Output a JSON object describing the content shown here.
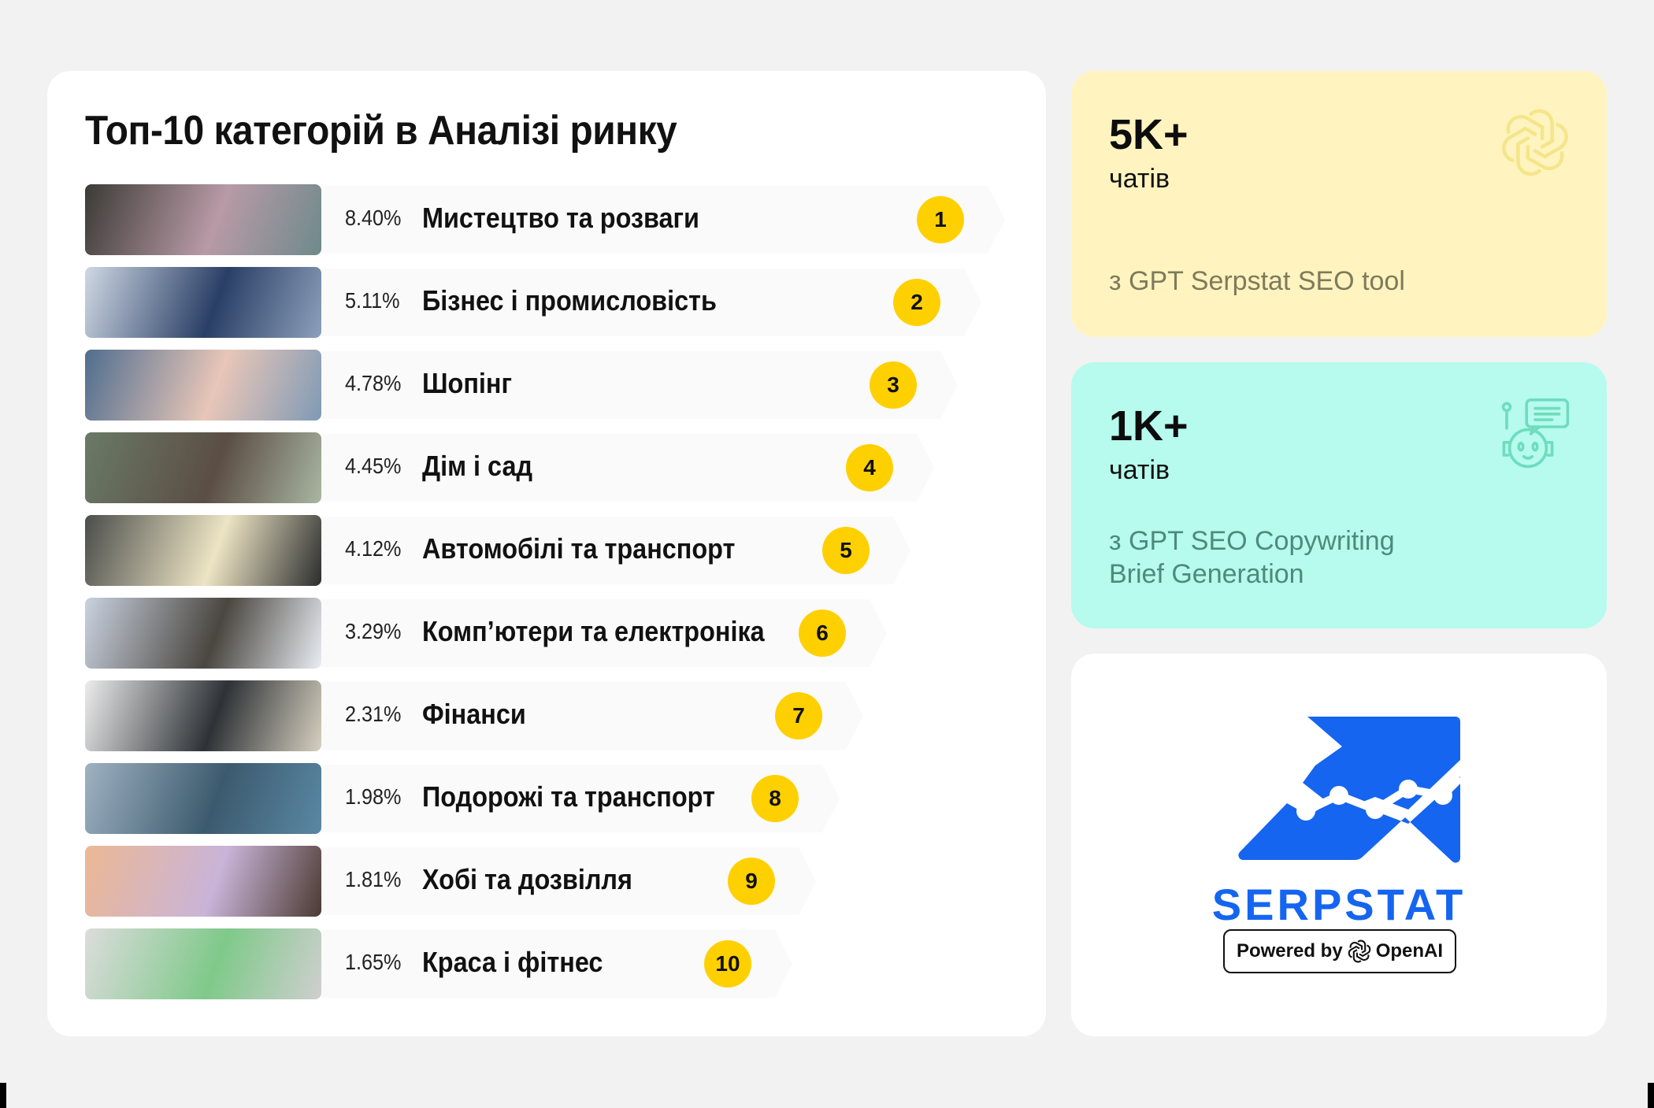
{
  "left_panel": {
    "title": "Топ-10 категорій в Аналізі ринку",
    "categories": [
      {
        "rank": "1",
        "percent": "8.40%",
        "label": "Мистецтво та розваги",
        "image": "artist-painting-photo",
        "thumb_colors": [
          "#3b3a36",
          "#b89aa6",
          "#6e8a8c"
        ]
      },
      {
        "rank": "2",
        "percent": "5.11%",
        "label": "Бізнес і промисловість",
        "image": "business-documents-photo",
        "thumb_colors": [
          "#cfd8e4",
          "#2a3f66",
          "#8da0bb"
        ]
      },
      {
        "rank": "3",
        "percent": "4.78%",
        "label": "Шопінг",
        "image": "shopping-bags-photo",
        "thumb_colors": [
          "#4f6d8e",
          "#e8c6b8",
          "#7f9ab5"
        ]
      },
      {
        "rank": "4",
        "percent": "4.45%",
        "label": "Дім і сад",
        "image": "garden-plants-photo",
        "thumb_colors": [
          "#6a7a66",
          "#5b4e44",
          "#a9b6a2"
        ]
      },
      {
        "rank": "5",
        "percent": "4.12%",
        "label": "Автомобілі та транспорт",
        "image": "car-photo",
        "thumb_colors": [
          "#4a4d4b",
          "#ede4c4",
          "#2b2d2e"
        ]
      },
      {
        "rank": "6",
        "percent": "3.29%",
        "label": "Комп’ютери та електроніка",
        "image": "computers-photo",
        "thumb_colors": [
          "#cad2e0",
          "#4a4640",
          "#e9edf3"
        ]
      },
      {
        "rank": "7",
        "percent": "2.31%",
        "label": "Фінанси",
        "image": "finance-calculator-photo",
        "thumb_colors": [
          "#ececec",
          "#2e3236",
          "#d6d0c0"
        ]
      },
      {
        "rank": "8",
        "percent": "1.98%",
        "label": "Подорожі та транспорт",
        "image": "travel-photo",
        "thumb_colors": [
          "#9fb2c2",
          "#3c5a6e",
          "#5a88a4"
        ]
      },
      {
        "rank": "9",
        "percent": "1.81%",
        "label": "Хобі та дозвілля",
        "image": "hobby-headphones-photo",
        "thumb_colors": [
          "#ecb894",
          "#c9b4d8",
          "#4b3a32"
        ]
      },
      {
        "rank": "10",
        "percent": "1.65%",
        "label": "Краса і фітнес",
        "image": "fitness-dumbbells-photo",
        "thumb_colors": [
          "#dcdcdc",
          "#7fc98a",
          "#cfcfcf"
        ]
      }
    ]
  },
  "stats": [
    {
      "value": "5K+",
      "unit": "чатів",
      "description": [
        "з GPT Serpstat SEO tool"
      ],
      "icon": "openai-icon",
      "bg": "#fff4bf"
    },
    {
      "value": "1K+",
      "unit": "чатів",
      "description": [
        "з GPT SEO Copywriting",
        "Brief Generation"
      ],
      "icon": "robot-chat-icon",
      "bg": "#b6fbee"
    }
  ],
  "brand": {
    "name": "SERPSTAT",
    "powered_by": "Powered by",
    "partner": "OpenAI",
    "color": "#1565f0"
  },
  "colors": {
    "badge": "#ffd000",
    "background": "#f2f2f2"
  }
}
